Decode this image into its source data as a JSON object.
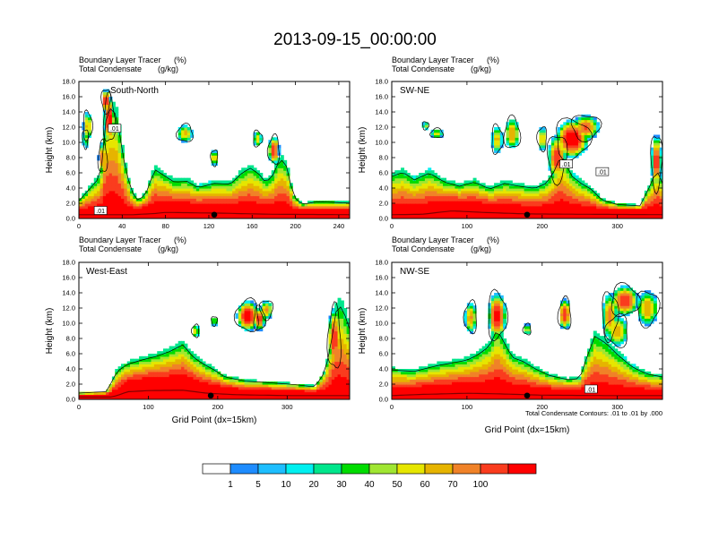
{
  "figure": {
    "title": "2013-09-15_00:00:00",
    "note": "Total Condensate Contours: .01 to .01 by .000",
    "colorbar": {
      "levels": [
        "1",
        "5",
        "10",
        "20",
        "30",
        "40",
        "50",
        "60",
        "70",
        "100"
      ],
      "colors": [
        "#ffffff",
        "#1e8cff",
        "#1ebeff",
        "#00f0f0",
        "#00e68c",
        "#00dc00",
        "#a0e632",
        "#e6e600",
        "#e6b400",
        "#f08228",
        "#fa3c1e",
        "#ff0000"
      ]
    }
  },
  "chart_data": [
    {
      "type": "heatmap",
      "panel_label": "South-North",
      "subtitle_1": "Boundary Layer Tracer",
      "subtitle_1_units": "(%)",
      "subtitle_2": "Total Condensate",
      "subtitle_2_units": "(g/kg)",
      "ylabel": "Height (km)",
      "xlabel": "",
      "xlim": [
        0,
        250
      ],
      "ylim": [
        0,
        18
      ],
      "xticks": [
        0,
        40,
        80,
        120,
        160,
        200,
        240
      ],
      "yticks": [
        "0.0",
        "2.0",
        "4.0",
        "6.0",
        "8.0",
        "10.0",
        "12.0",
        "14.0",
        "16.0",
        "18.0"
      ],
      "contour_labels": [
        {
          "x": 33,
          "y": 11.8,
          "text": ".01"
        },
        {
          "x": 20,
          "y": 1.0,
          "text": ".01"
        }
      ],
      "marker_x": 125,
      "field": {
        "base": [
          [
            0,
            1.0
          ],
          [
            20,
            1.0
          ],
          [
            50,
            1.0
          ],
          [
            70,
            1.3
          ],
          [
            80,
            1.6
          ],
          [
            130,
            1.4
          ],
          [
            180,
            1.1
          ],
          [
            250,
            1.0
          ]
        ],
        "top": [
          [
            0,
            2.5
          ],
          [
            20,
            6.0
          ],
          [
            25,
            14.0
          ],
          [
            30,
            16.0
          ],
          [
            35,
            14.5
          ],
          [
            42,
            8.0
          ],
          [
            48,
            4.0
          ],
          [
            55,
            2.5
          ],
          [
            62,
            3.6
          ],
          [
            70,
            7.0
          ],
          [
            78,
            6.2
          ],
          [
            88,
            5.2
          ],
          [
            100,
            5.3
          ],
          [
            110,
            4.4
          ],
          [
            125,
            5.0
          ],
          [
            140,
            4.9
          ],
          [
            150,
            6.4
          ],
          [
            158,
            7.2
          ],
          [
            166,
            6.4
          ],
          [
            172,
            5.2
          ],
          [
            178,
            5.8
          ],
          [
            186,
            8.6
          ],
          [
            192,
            7.4
          ],
          [
            198,
            3.2
          ],
          [
            206,
            2.0
          ],
          [
            220,
            2.4
          ],
          [
            250,
            2.2
          ]
        ],
        "blobs": [
          [
            8,
            12.2,
            4,
            1.8,
            0.55
          ],
          [
            6,
            10.5,
            2.5,
            1.2,
            0.4
          ],
          [
            28,
            13,
            5,
            3,
            0.9
          ],
          [
            25,
            15.5,
            4,
            1.5,
            0.85
          ],
          [
            22,
            8,
            4,
            2,
            0.7
          ],
          [
            98,
            11.2,
            7,
            1.1,
            0.55
          ],
          [
            125,
            8.0,
            3,
            1,
            0.6
          ],
          [
            165,
            10.5,
            4,
            1,
            0.5
          ],
          [
            180,
            9.0,
            5,
            1.8,
            0.8
          ]
        ]
      }
    },
    {
      "type": "heatmap",
      "panel_label": "SW-NE",
      "subtitle_1": "Boundary Layer Tracer",
      "subtitle_1_units": "(%)",
      "subtitle_2": "Total Condensate",
      "subtitle_2_units": "(g/kg)",
      "ylabel": "Height (km)",
      "xlabel": "",
      "xlim": [
        0,
        360
      ],
      "ylim": [
        0,
        18
      ],
      "xticks": [
        0,
        100,
        200,
        300
      ],
      "yticks": [
        "0.0",
        "2.0",
        "4.0",
        "6.0",
        "8.0",
        "10.0",
        "12.0",
        "14.0",
        "16.0",
        "18.0"
      ],
      "contour_labels": [
        {
          "x": 232,
          "y": 7.1,
          "text": ".01"
        },
        {
          "x": 280,
          "y": 6.1,
          "text": ".01"
        }
      ],
      "marker_x": 180,
      "field": {
        "base": [
          [
            0,
            1.0
          ],
          [
            40,
            1.1
          ],
          [
            80,
            2.0
          ],
          [
            120,
            1.6
          ],
          [
            180,
            1.2
          ],
          [
            260,
            1.1
          ],
          [
            360,
            1.0
          ]
        ],
        "top": [
          [
            0,
            6.0
          ],
          [
            15,
            6.6
          ],
          [
            30,
            5.5
          ],
          [
            50,
            6.5
          ],
          [
            70,
            5.2
          ],
          [
            90,
            4.6
          ],
          [
            110,
            5.2
          ],
          [
            130,
            4.2
          ],
          [
            150,
            5.0
          ],
          [
            170,
            4.6
          ],
          [
            190,
            4.3
          ],
          [
            205,
            5.0
          ],
          [
            215,
            6.5
          ],
          [
            225,
            9.0
          ],
          [
            240,
            6.0
          ],
          [
            252,
            5.0
          ],
          [
            265,
            4.2
          ],
          [
            280,
            2.6
          ],
          [
            300,
            2.0
          ],
          [
            330,
            1.8
          ],
          [
            345,
            5.0
          ],
          [
            352,
            7.0
          ],
          [
            360,
            5.0
          ]
        ],
        "blobs": [
          [
            240,
            10.5,
            22,
            2.5,
            0.95
          ],
          [
            220,
            8.0,
            12,
            3,
            0.8
          ],
          [
            258,
            12.0,
            18,
            1.6,
            0.7
          ],
          [
            140,
            10.4,
            7,
            1.8,
            0.55
          ],
          [
            160,
            11.2,
            10,
            2.0,
            0.6
          ],
          [
            200,
            10.5,
            6,
            1.5,
            0.5
          ],
          [
            60,
            11.2,
            8,
            0.6,
            0.45
          ],
          [
            45,
            12.2,
            4,
            0.5,
            0.4
          ],
          [
            352,
            7.5,
            7,
            3.5,
            0.8
          ]
        ]
      }
    },
    {
      "type": "heatmap",
      "panel_label": "West-East",
      "subtitle_1": "Boundary Layer Tracer",
      "subtitle_1_units": "(%)",
      "subtitle_2": "Total Condensate",
      "subtitle_2_units": "(g/kg)",
      "ylabel": "Height (km)",
      "xlabel": "Grid Point (dx=15km)",
      "xlim": [
        0,
        390
      ],
      "ylim": [
        0,
        18
      ],
      "xticks": [
        0,
        100,
        200,
        300
      ],
      "yticks": [
        "0.0",
        "2.0",
        "4.0",
        "6.0",
        "8.0",
        "10.0",
        "12.0",
        "14.0",
        "16.0",
        "18.0"
      ],
      "contour_labels": [],
      "marker_x": 190,
      "field": {
        "base": [
          [
            0,
            0.6
          ],
          [
            45,
            0.6
          ],
          [
            55,
            1.0
          ],
          [
            70,
            2.0
          ],
          [
            100,
            2.3
          ],
          [
            150,
            2.4
          ],
          [
            185,
            1.6
          ],
          [
            230,
            1.2
          ],
          [
            300,
            1.0
          ],
          [
            390,
            1.0
          ]
        ],
        "top": [
          [
            0,
            0.9
          ],
          [
            40,
            1.1
          ],
          [
            55,
            4.0
          ],
          [
            70,
            5.0
          ],
          [
            90,
            5.6
          ],
          [
            110,
            6.1
          ],
          [
            130,
            6.8
          ],
          [
            150,
            7.8
          ],
          [
            165,
            6.0
          ],
          [
            180,
            5.0
          ],
          [
            195,
            4.2
          ],
          [
            210,
            3.2
          ],
          [
            240,
            2.6
          ],
          [
            300,
            2.2
          ],
          [
            340,
            1.8
          ],
          [
            355,
            4.0
          ],
          [
            365,
            9.0
          ],
          [
            372,
            13.5
          ],
          [
            380,
            13.0
          ],
          [
            390,
            10.0
          ]
        ],
        "blobs": [
          [
            243,
            11.0,
            16,
            2.0,
            0.9
          ],
          [
            260,
            10.6,
            8,
            1.5,
            0.8
          ],
          [
            168,
            9.0,
            5,
            0.8,
            0.5
          ],
          [
            195,
            10.3,
            4,
            0.6,
            0.45
          ],
          [
            270,
            11.8,
            9,
            1.2,
            0.6
          ],
          [
            368,
            8.0,
            9,
            4.0,
            0.8
          ]
        ]
      }
    },
    {
      "type": "heatmap",
      "panel_label": "NW-SE",
      "subtitle_1": "Boundary Layer Tracer",
      "subtitle_1_units": "(%)",
      "subtitle_2": "Total Condensate",
      "subtitle_2_units": "(g/kg)",
      "ylabel": "Height (km)",
      "xlabel": "Grid Point (dx=15km)",
      "xlim": [
        0,
        360
      ],
      "ylim": [
        0,
        18
      ],
      "xticks": [
        0,
        100,
        200,
        300
      ],
      "yticks": [
        "0.0",
        "2.0",
        "4.0",
        "6.0",
        "8.0",
        "10.0",
        "12.0",
        "14.0",
        "16.0",
        "18.0"
      ],
      "contour_labels": [
        {
          "x": 265,
          "y": 1.3,
          "text": ".01"
        }
      ],
      "marker_x": 180,
      "field": {
        "base": [
          [
            0,
            1.0
          ],
          [
            40,
            1.3
          ],
          [
            100,
            1.6
          ],
          [
            150,
            1.4
          ],
          [
            200,
            1.1
          ],
          [
            280,
            1.0
          ],
          [
            360,
            1.0
          ]
        ],
        "top": [
          [
            0,
            4.2
          ],
          [
            30,
            4.0
          ],
          [
            60,
            4.8
          ],
          [
            80,
            5.2
          ],
          [
            100,
            5.6
          ],
          [
            115,
            6.4
          ],
          [
            130,
            7.6
          ],
          [
            140,
            10.0
          ],
          [
            150,
            8.0
          ],
          [
            160,
            6.0
          ],
          [
            175,
            5.4
          ],
          [
            190,
            4.4
          ],
          [
            210,
            3.4
          ],
          [
            235,
            2.8
          ],
          [
            250,
            3.0
          ],
          [
            262,
            6.8
          ],
          [
            270,
            9.0
          ],
          [
            285,
            8.0
          ],
          [
            300,
            6.4
          ],
          [
            320,
            4.6
          ],
          [
            340,
            3.6
          ],
          [
            360,
            3.2
          ]
        ],
        "blobs": [
          [
            140,
            11.0,
            12,
            3.0,
            0.9
          ],
          [
            105,
            10.8,
            8,
            2.0,
            0.6
          ],
          [
            230,
            11.2,
            8,
            2.0,
            0.8
          ],
          [
            310,
            13.0,
            18,
            2.0,
            0.8
          ],
          [
            290,
            11.0,
            10,
            3.0,
            0.65
          ],
          [
            340,
            12.0,
            14,
            2.2,
            0.6
          ],
          [
            180,
            9.2,
            5,
            0.7,
            0.4
          ],
          [
            300,
            9.0,
            14,
            2.0,
            0.55
          ]
        ]
      }
    }
  ]
}
